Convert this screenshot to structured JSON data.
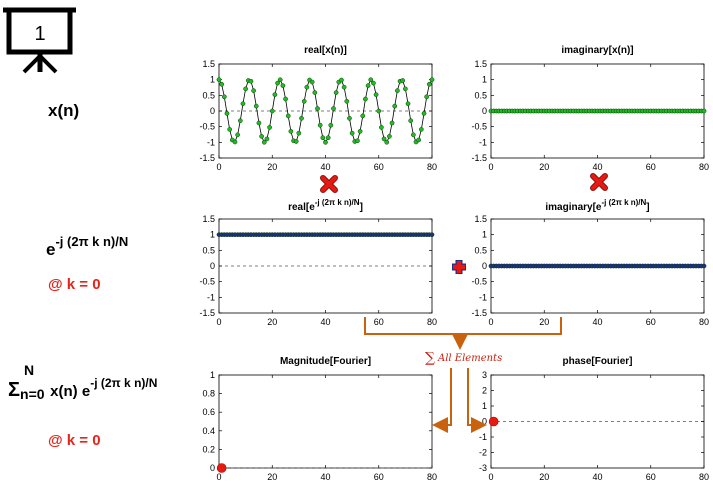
{
  "slide_number": "1",
  "labels": {
    "xn": "x(n)",
    "kernel_base": "e",
    "kernel_exp": "-j (2π k n)/N",
    "k_value": "@ k = 0",
    "sum_symbol": "Σ",
    "sum_upper": "N",
    "sum_lower": "n=0",
    "sum_body": " x(n) e",
    "sum_exp": "-j (2π k n)/N",
    "k_value_2": "@ k = 0",
    "all_elements": "All Elements"
  },
  "colors": {
    "signal_green": "#22bb22",
    "kernel_blue": "#1f2f8c",
    "result_red": "#e81a10",
    "arrow_orange": "#c8620f",
    "highlight_red": "#e8231a"
  },
  "chart_data": [
    {
      "id": "real_x",
      "type": "line",
      "title": "real[x(n)]",
      "xlim": [
        0,
        80
      ],
      "ylim": [
        -1.5,
        1.5
      ],
      "xticks": [
        0,
        20,
        40,
        60,
        80
      ],
      "yticks": [
        1.5,
        1,
        0.5,
        0,
        -0.5,
        -1,
        -1.5
      ],
      "series": [
        {
          "marker": "green-dot",
          "function": "cos(2π·7·n/80)",
          "n": [
            0,
            80
          ]
        }
      ]
    },
    {
      "id": "imag_x",
      "type": "line",
      "title": "imaginary[x(n)]",
      "xlim": [
        0,
        80
      ],
      "ylim": [
        -1.5,
        1.5
      ],
      "xticks": [
        0,
        20,
        40,
        60,
        80
      ],
      "yticks": [
        1.5,
        1,
        0.5,
        0,
        -0.5,
        -1,
        -1.5
      ],
      "series": [
        {
          "marker": "green-dot",
          "constant": 0,
          "n": [
            0,
            80
          ]
        }
      ]
    },
    {
      "id": "real_kernel",
      "type": "line",
      "title": "real[e",
      "title_sup": "-j (2π k n)/N",
      "title_end": "]",
      "xlim": [
        0,
        80
      ],
      "ylim": [
        -1.5,
        1.5
      ],
      "xticks": [
        0,
        20,
        40,
        60,
        80
      ],
      "yticks": [
        1.5,
        1,
        0.5,
        0,
        -0.5,
        -1,
        -1.5
      ],
      "series": [
        {
          "marker": "blue-dot",
          "constant": 1,
          "n": [
            0,
            80
          ]
        }
      ]
    },
    {
      "id": "imag_kernel",
      "type": "line",
      "title": "imaginary[e",
      "title_sup": "-j (2π k n)/N",
      "title_end": "]",
      "xlim": [
        0,
        80
      ],
      "ylim": [
        -1.5,
        1.5
      ],
      "xticks": [
        0,
        20,
        40,
        60,
        80
      ],
      "yticks": [
        1.5,
        1,
        0.5,
        0,
        -0.5,
        -1,
        -1.5
      ],
      "series": [
        {
          "marker": "blue-dot",
          "constant": 0,
          "n": [
            0,
            80
          ]
        }
      ]
    },
    {
      "id": "magnitude",
      "type": "scatter",
      "title": "Magnitude[Fourier]",
      "xlim": [
        0,
        80
      ],
      "ylim": [
        0,
        1
      ],
      "xticks": [
        0,
        20,
        40,
        60,
        80
      ],
      "yticks": [
        1,
        0.8,
        0.6,
        0.4,
        0.2,
        0
      ],
      "points": [
        {
          "x": 1,
          "y": 0
        }
      ]
    },
    {
      "id": "phase",
      "type": "scatter",
      "title": "phase[Fourier]",
      "xlim": [
        0,
        80
      ],
      "ylim": [
        -3,
        3
      ],
      "xticks": [
        0,
        20,
        40,
        60,
        80
      ],
      "yticks": [
        3,
        2,
        1,
        0,
        -1,
        -2,
        -3
      ],
      "points": [
        {
          "x": 1,
          "y": 0
        }
      ]
    }
  ]
}
